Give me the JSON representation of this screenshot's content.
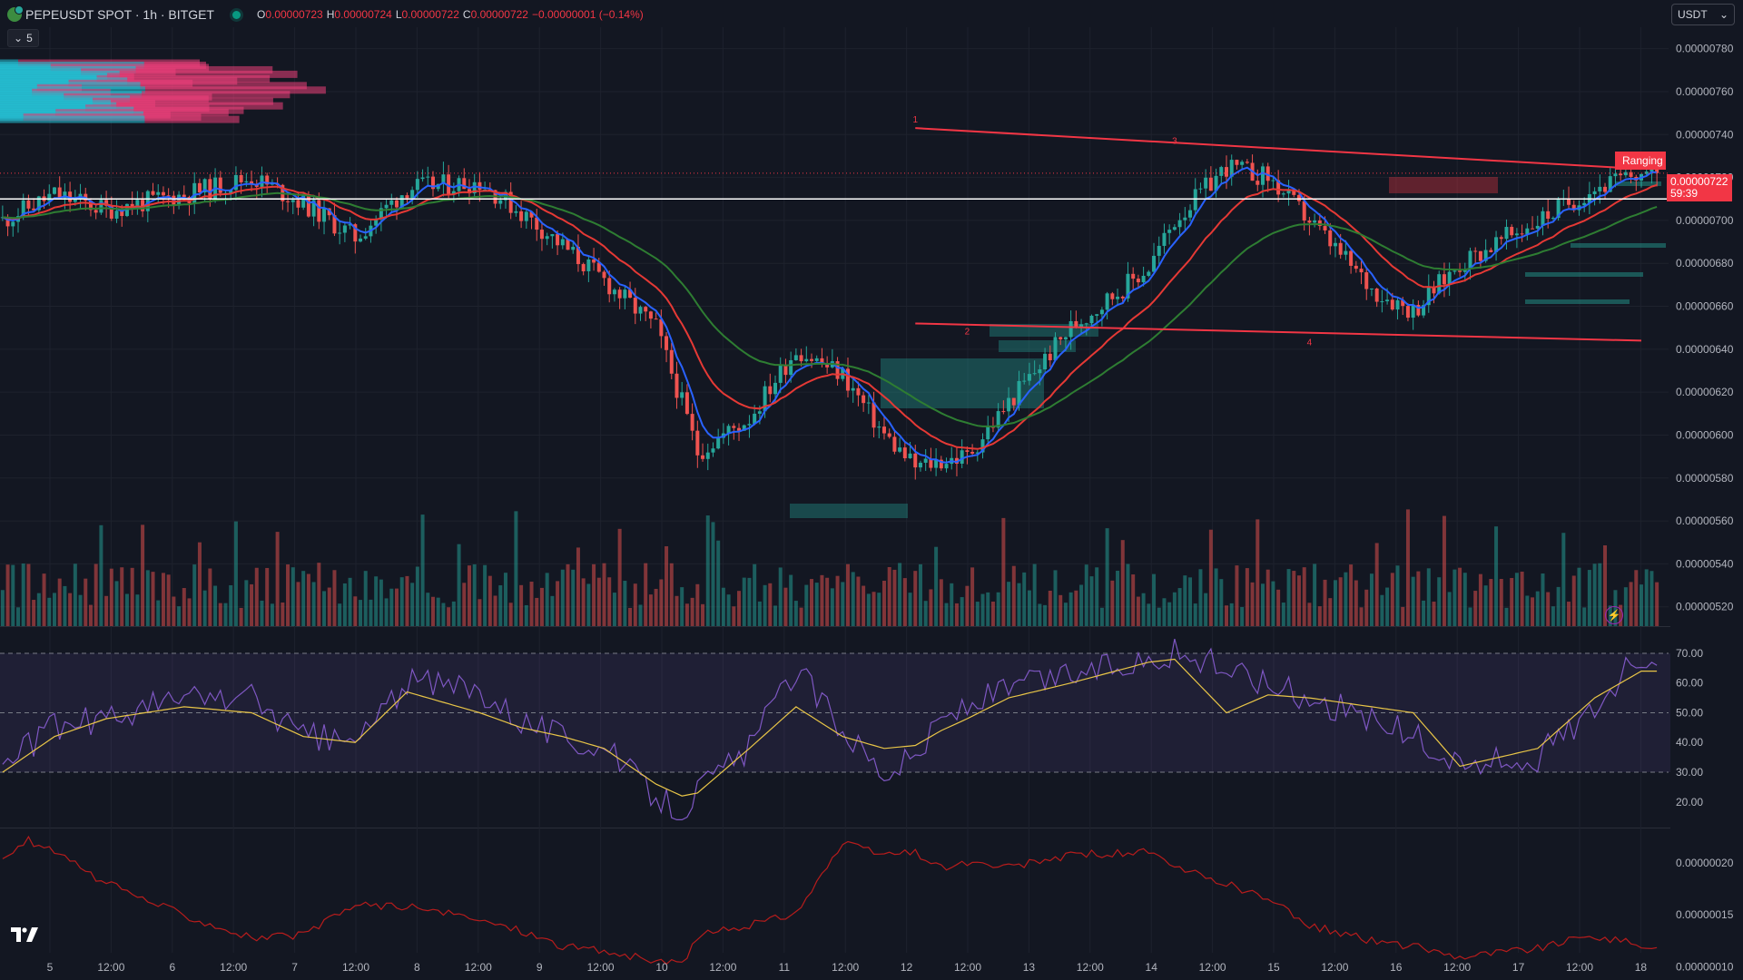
{
  "header": {
    "symbol": "PEPEUSDT SPOT · 1h · BITGET",
    "ohlc": [
      {
        "k": "O",
        "v": "0.00000723"
      },
      {
        "k": "H",
        "v": "0.00000724"
      },
      {
        "k": "L",
        "v": "0.00000722"
      },
      {
        "k": "C",
        "v": "0.00000722"
      }
    ],
    "change": "−0.00000001 (−0.14%)",
    "indicators_toggle": "5"
  },
  "currency_button": "USDT",
  "last_price": "0.00000722",
  "countdown": "59:39",
  "ranging_label": "Ranging C",
  "colors": {
    "background": "#131722",
    "up": "#26a69a",
    "down": "#ef5350",
    "ema_fast": "#2962ff",
    "ema_mid": "#e53935",
    "ema_slow": "#2e7d32",
    "rsi": "#7e57c2",
    "rsi_ma": "#e8c547",
    "lower_line": "#b71c1c"
  },
  "chart_data": [
    {
      "type": "candlestick",
      "title": "PEPEUSDT SPOT · 1h · BITGET",
      "y_ticks": [
        "0.00000780",
        "0.00000760",
        "0.00000740",
        "0.00000720",
        "0.00000700",
        "0.00000680",
        "0.00000660",
        "0.00000640",
        "0.00000620",
        "0.00000600",
        "0.00000580",
        "0.00000560",
        "0.00000540",
        "0.00000520"
      ],
      "ylim": [
        5.11e-06,
        7.9e-06
      ],
      "x_ticks": [
        "5",
        "12:00",
        "6",
        "12:00",
        "7",
        "12:00",
        "8",
        "12:00",
        "9",
        "12:00",
        "10",
        "12:00",
        "11",
        "12:00",
        "12",
        "12:00",
        "13",
        "12:00",
        "14",
        "12:00",
        "15",
        "12:00",
        "16",
        "12:00",
        "17",
        "12:00",
        "18"
      ],
      "price_path": {
        "x": [
          0,
          10,
          20,
          35,
          48,
          58,
          68,
          78,
          92,
          102,
          108,
          116,
          126,
          131,
          134,
          144,
          153,
          162,
          170,
          176,
          181,
          186,
          194,
          206,
          221,
          226,
          236,
          244,
          252,
          264,
          272,
          281,
          296,
          307,
          316
        ],
        "close": [
          7e-06,
          7.12e-06,
          7.05e-06,
          7.12e-06,
          7.2e-06,
          7.08e-06,
          6.92e-06,
          7.15e-06,
          7.18e-06,
          7e-06,
          6.88e-06,
          6.72e-06,
          6.5e-06,
          6.15e-06,
          5.92e-06,
          6.08e-06,
          6.4e-06,
          6.28e-06,
          6e-06,
          5.85e-06,
          5.88e-06,
          5.9e-06,
          6.15e-06,
          6.5e-06,
          6.78e-06,
          7e-06,
          7.25e-06,
          7.2e-06,
          7e-06,
          6.68e-06,
          6.58e-06,
          6.8e-06,
          7e-06,
          7.15e-06,
          7.22e-06
        ]
      },
      "lines": [
        {
          "name": "ema-fast",
          "color": "#2962ff"
        },
        {
          "name": "ema-mid",
          "color": "#e53935"
        },
        {
          "name": "ema-slow",
          "color": "#2e7d32"
        }
      ],
      "pattern_points": [
        {
          "label": "1",
          "x": 176,
          "y": 7.44e-06
        },
        {
          "label": "2",
          "x": 186,
          "y": 6.52e-06
        },
        {
          "label": "3",
          "x": 226,
          "y": 7.34e-06
        },
        {
          "label": "4",
          "x": 252,
          "y": 6.47e-06
        },
        {
          "label": "5",
          "x": 316,
          "y": 7.24e-06
        }
      ],
      "trend_lines": [
        {
          "from": [
            176,
            7.43e-06
          ],
          "to": [
            316,
            7.24e-06
          ]
        },
        {
          "from": [
            176,
            6.52e-06
          ],
          "to": [
            316,
            6.44e-06
          ]
        }
      ],
      "horizontal_line": 7.1e-06
    },
    {
      "type": "line",
      "title": "RSI",
      "y_ticks": [
        "70.00",
        "60.00",
        "50.00",
        "40.00",
        "30.00",
        "20.00"
      ],
      "ylim": [
        12,
        77
      ],
      "bands": [
        30,
        50,
        70
      ],
      "rsi_path": {
        "x": [
          0,
          10,
          20,
          35,
          48,
          58,
          68,
          78,
          92,
          100,
          108,
          116,
          126,
          131,
          134,
          144,
          153,
          162,
          170,
          176,
          181,
          186,
          194,
          206,
          221,
          226,
          236,
          244,
          252,
          264,
          272,
          281,
          296,
          307,
          316
        ],
        "values": [
          32,
          45,
          48,
          55,
          55,
          42,
          40,
          60,
          58,
          48,
          42,
          38,
          22,
          17,
          24,
          38,
          65,
          45,
          30,
          35,
          48,
          52,
          58,
          63,
          68,
          70,
          65,
          60,
          55,
          48,
          42,
          32,
          35,
          52,
          70
        ]
      },
      "ma_path": {
        "x": [
          0,
          10,
          20,
          35,
          48,
          58,
          68,
          78,
          92,
          100,
          108,
          116,
          126,
          131,
          134,
          144,
          153,
          162,
          170,
          176,
          181,
          186,
          194,
          206,
          221,
          226,
          236,
          244,
          252,
          264,
          272,
          281,
          296,
          307,
          316
        ],
        "values": [
          30,
          42,
          48,
          52,
          50,
          42,
          40,
          57,
          50,
          45,
          42,
          38,
          26,
          22,
          23,
          38,
          52,
          42,
          38,
          39,
          44,
          48,
          55,
          60,
          67,
          68,
          50,
          56,
          55,
          52,
          50,
          32,
          38,
          55,
          64
        ]
      }
    },
    {
      "type": "line",
      "title": "",
      "y_ticks": [
        "0.00000020",
        "0.00000015",
        "0.00000010"
      ],
      "ylim": [
        9.95e-08,
        2.27e-07
      ],
      "path": {
        "x": [
          0,
          5,
          10,
          20,
          35,
          48,
          58,
          68,
          78,
          92,
          100,
          108,
          116,
          126,
          131,
          134,
          144,
          153,
          162,
          170,
          176,
          181,
          186,
          194,
          206,
          221,
          226,
          236,
          244,
          252,
          264,
          272,
          281,
          296,
          307,
          316
        ],
        "values": [
          2e-07,
          2.22e-07,
          2.1e-07,
          1.8e-07,
          1.5e-07,
          1.28e-07,
          1.3e-07,
          1.6e-07,
          1.58e-07,
          1.45e-07,
          1.35e-07,
          1.2e-07,
          1.15e-07,
          1.05e-07,
          1.02e-07,
          1.3e-07,
          1.4e-07,
          1.52e-07,
          2.18e-07,
          2.08e-07,
          2.1e-07,
          1.95e-07,
          2e-07,
          1.95e-07,
          2.08e-07,
          2.1e-07,
          1.95e-07,
          1.8e-07,
          1.65e-07,
          1.4e-07,
          1.25e-07,
          1.2e-07,
          1.1e-07,
          1.18e-07,
          1.3e-07,
          1.2e-07
        ]
      }
    }
  ]
}
